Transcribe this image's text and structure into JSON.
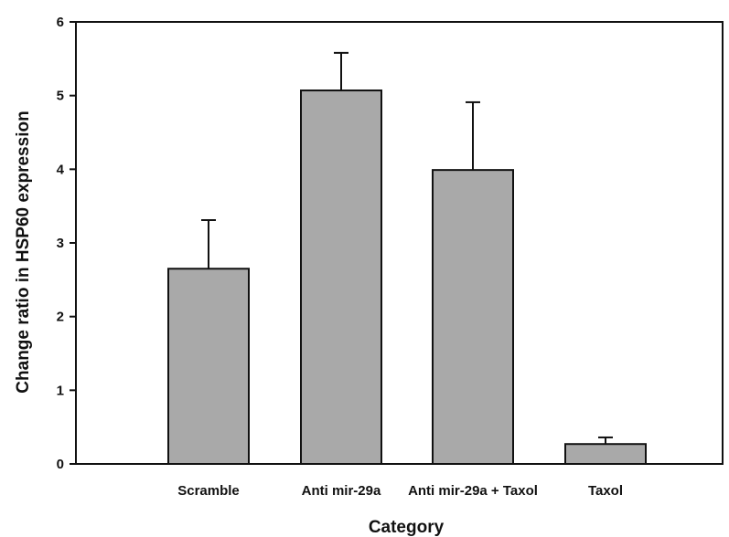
{
  "chart_data": {
    "type": "bar",
    "title": "",
    "xlabel": "Category",
    "ylabel": "Change ratio in HSP60 expression",
    "ylim": [
      0,
      6
    ],
    "yticks": [
      "0",
      "1",
      "2",
      "3",
      "4",
      "5",
      "6"
    ],
    "categories": [
      "Scramble",
      "Anti mir-29a",
      "Anti mir-29a + Taxol",
      "Taxol"
    ],
    "values": [
      2.65,
      5.07,
      3.99,
      0.27
    ],
    "error_upper": [
      0.66,
      0.51,
      0.92,
      0.09
    ],
    "grid": false,
    "legend": "none",
    "bar_color": "#a9a9a9",
    "bar_edge_color": "#111111"
  }
}
